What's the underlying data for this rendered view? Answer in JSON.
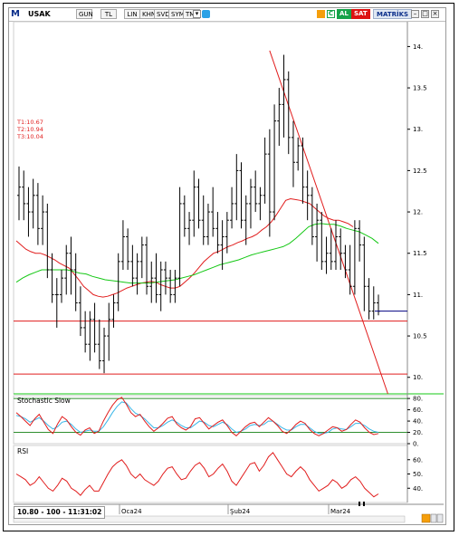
{
  "toolbar": {
    "logo": "M",
    "symbol": "USAK",
    "buttons": [
      "GUN",
      "TL",
      "LIN",
      "KHN",
      "SVD",
      "SYM",
      "TMP"
    ],
    "al_label": "AL",
    "sat_label": "SAT",
    "brand_label": "MATRİKS",
    "c_label": "C"
  },
  "status": "10.80 - 100 - 11:31:02",
  "targets": [
    "T1:10.67",
    "T2:10.94",
    "T3:10.04"
  ],
  "colors": {
    "bars": "#000000",
    "ma_fast": "#e11d1d",
    "ma_slow": "#16c816",
    "trendline": "#e11d1d",
    "hline": "#e11d1d",
    "stoch_k": "#e11d1d",
    "stoch_d": "#38b6e8",
    "rsi": "#e11d1d",
    "last_price_line": "#000080"
  },
  "chart_data": [
    {
      "type": "ohlc",
      "ylim": [
        9.8,
        14.3
      ],
      "y_ticks": [
        "14.",
        "13.5",
        "13.",
        "12.5",
        "12.",
        "11.5",
        "11.",
        "10.5",
        "10."
      ],
      "x_ticks": [
        "Oca24",
        "Şub24",
        "Mar24"
      ],
      "bars": [
        [
          12.2,
          12.55,
          11.9,
          12.3
        ],
        [
          12.3,
          12.5,
          11.9,
          12.1
        ],
        [
          12.1,
          12.3,
          11.7,
          12.0
        ],
        [
          12.0,
          12.4,
          11.8,
          12.2
        ],
        [
          12.2,
          12.35,
          11.6,
          11.8
        ],
        [
          11.8,
          12.2,
          11.6,
          12.0
        ],
        [
          12.0,
          12.1,
          11.2,
          11.3
        ],
        [
          11.3,
          11.5,
          10.9,
          11.0
        ],
        [
          11.0,
          11.2,
          10.6,
          11.0
        ],
        [
          11.0,
          11.3,
          10.9,
          11.2
        ],
        [
          11.2,
          11.6,
          11.0,
          11.5
        ],
        [
          11.5,
          11.7,
          11.0,
          11.3
        ],
        [
          11.3,
          11.5,
          10.8,
          10.9
        ],
        [
          10.9,
          11.1,
          10.5,
          10.6
        ],
        [
          10.6,
          10.8,
          10.3,
          10.4
        ],
        [
          10.4,
          10.8,
          10.2,
          10.7
        ],
        [
          10.7,
          10.9,
          10.3,
          10.4
        ],
        [
          10.4,
          10.7,
          10.1,
          10.2
        ],
        [
          10.2,
          10.6,
          10.05,
          10.5
        ],
        [
          10.5,
          10.9,
          10.2,
          10.7
        ],
        [
          10.7,
          11.0,
          10.6,
          10.9
        ],
        [
          10.9,
          11.5,
          10.8,
          11.4
        ],
        [
          11.4,
          11.9,
          11.3,
          11.7
        ],
        [
          11.7,
          11.8,
          11.3,
          11.4
        ],
        [
          11.4,
          11.6,
          11.1,
          11.2
        ],
        [
          11.2,
          11.5,
          11.0,
          11.4
        ],
        [
          11.4,
          11.7,
          11.2,
          11.6
        ],
        [
          11.6,
          11.7,
          11.0,
          11.1
        ],
        [
          11.1,
          11.4,
          10.9,
          11.2
        ],
        [
          11.2,
          11.5,
          10.9,
          11.0
        ],
        [
          11.0,
          11.4,
          10.8,
          11.3
        ],
        [
          11.3,
          11.4,
          11.0,
          11.2
        ],
        [
          11.2,
          11.3,
          10.9,
          11.0
        ],
        [
          11.0,
          11.3,
          10.9,
          11.2
        ],
        [
          11.2,
          12.3,
          11.1,
          12.1
        ],
        [
          12.1,
          12.2,
          11.7,
          11.8
        ],
        [
          11.8,
          12.0,
          11.6,
          11.9
        ],
        [
          11.9,
          12.5,
          11.7,
          12.3
        ],
        [
          12.3,
          12.4,
          11.8,
          11.9
        ],
        [
          11.9,
          12.2,
          11.6,
          11.7
        ],
        [
          11.7,
          12.1,
          11.6,
          12.0
        ],
        [
          12.0,
          12.3,
          11.7,
          11.8
        ],
        [
          11.8,
          12.0,
          11.5,
          11.6
        ],
        [
          11.6,
          11.9,
          11.3,
          11.7
        ],
        [
          11.7,
          12.0,
          11.5,
          11.9
        ],
        [
          11.9,
          12.3,
          11.8,
          12.1
        ],
        [
          12.1,
          12.7,
          11.9,
          12.5
        ],
        [
          12.5,
          12.6,
          11.8,
          11.9
        ],
        [
          11.9,
          12.2,
          11.6,
          12.1
        ],
        [
          12.1,
          12.4,
          11.8,
          12.3
        ],
        [
          12.3,
          12.5,
          12.0,
          12.1
        ],
        [
          12.1,
          12.3,
          11.9,
          12.2
        ],
        [
          12.2,
          12.9,
          12.1,
          12.7
        ],
        [
          12.7,
          13.0,
          11.7,
          12.0
        ],
        [
          12.0,
          13.3,
          11.9,
          13.1
        ],
        [
          13.1,
          13.5,
          12.8,
          13.3
        ],
        [
          13.3,
          13.9,
          12.9,
          13.6
        ],
        [
          13.6,
          13.7,
          12.7,
          12.9
        ],
        [
          12.9,
          13.1,
          12.3,
          12.6
        ],
        [
          12.6,
          12.9,
          12.5,
          12.8
        ],
        [
          12.8,
          12.9,
          12.1,
          12.3
        ],
        [
          12.3,
          12.5,
          11.9,
          12.2
        ],
        [
          12.2,
          12.3,
          11.6,
          11.7
        ],
        [
          11.7,
          12.1,
          11.4,
          11.9
        ],
        [
          11.9,
          12.0,
          11.3,
          11.4
        ],
        [
          11.4,
          11.7,
          11.25,
          11.5
        ],
        [
          11.5,
          11.8,
          11.3,
          11.4
        ],
        [
          11.4,
          11.9,
          11.3,
          11.7
        ],
        [
          11.7,
          11.8,
          11.3,
          11.5
        ],
        [
          11.5,
          11.6,
          11.2,
          11.3
        ],
        [
          11.3,
          11.6,
          11.0,
          11.1
        ],
        [
          11.1,
          11.9,
          11.0,
          11.8
        ],
        [
          11.8,
          11.9,
          11.4,
          11.6
        ],
        [
          11.6,
          11.7,
          10.8,
          11.1
        ],
        [
          11.1,
          11.2,
          10.7,
          10.8
        ],
        [
          10.8,
          11.1,
          10.7,
          10.9
        ],
        [
          10.9,
          11.0,
          10.75,
          10.8
        ]
      ],
      "ma_fast": [
        11.65,
        11.6,
        11.55,
        11.52,
        11.5,
        11.5,
        11.48,
        11.45,
        11.42,
        11.38,
        11.35,
        11.32,
        11.25,
        11.18,
        11.1,
        11.05,
        11.0,
        10.98,
        10.97,
        10.98,
        11.0,
        11.02,
        11.05,
        11.08,
        11.1,
        11.12,
        11.14,
        11.15,
        11.16,
        11.15,
        11.12,
        11.1,
        11.08,
        11.08,
        11.1,
        11.15,
        11.2,
        11.26,
        11.33,
        11.4,
        11.45,
        11.5,
        11.52,
        11.55,
        11.58,
        11.6,
        11.63,
        11.65,
        11.68,
        11.7,
        11.73,
        11.78,
        11.82,
        11.88,
        11.96,
        12.05,
        12.14,
        12.16,
        12.15,
        12.14,
        12.12,
        12.1,
        12.05,
        12.0,
        11.95,
        11.92,
        11.9,
        11.9,
        11.88,
        11.86,
        11.82
      ],
      "ma_slow": [
        11.15,
        11.2,
        11.24,
        11.27,
        11.3,
        11.3,
        11.3,
        11.3,
        11.3,
        11.28,
        11.26,
        11.25,
        11.22,
        11.2,
        11.18,
        11.17,
        11.16,
        11.15,
        11.14,
        11.14,
        11.14,
        11.14,
        11.15,
        11.16,
        11.17,
        11.18,
        11.2,
        11.22,
        11.24,
        11.27,
        11.3,
        11.33,
        11.36,
        11.38,
        11.4,
        11.42,
        11.45,
        11.48,
        11.5,
        11.52,
        11.54,
        11.56,
        11.58,
        11.62,
        11.68,
        11.75,
        11.82,
        11.85,
        11.86,
        11.85,
        11.85,
        11.83,
        11.8,
        11.78,
        11.76,
        11.72,
        11.68,
        11.62
      ],
      "hlines": [
        10.68,
        10.04
      ],
      "last_price": 10.8,
      "trendline": {
        "from": [
          53,
          13.95
        ],
        "to": [
          78,
          9.8
        ]
      }
    },
    {
      "type": "line",
      "name": "Stochastic Slow",
      "ylim": [
        0,
        85
      ],
      "y_ticks": [
        "80.",
        "60.",
        "40.",
        "20.",
        "0."
      ],
      "levels": [
        80,
        20
      ],
      "series": [
        {
          "values": [
            55,
            48,
            40,
            32,
            44,
            52,
            38,
            25,
            18,
            35,
            48,
            42,
            30,
            20,
            15,
            24,
            28,
            18,
            22,
            40,
            55,
            68,
            78,
            82,
            70,
            55,
            48,
            52,
            40,
            30,
            22,
            28,
            36,
            45,
            48,
            35,
            28,
            24,
            30,
            44,
            46,
            36,
            26,
            32,
            38,
            42,
            32,
            20,
            14,
            22,
            30,
            36,
            38,
            30,
            38,
            46,
            40,
            32,
            22,
            18,
            25,
            34,
            40,
            36,
            25,
            18,
            14,
            18,
            24,
            30,
            28,
            22,
            25,
            34,
            42,
            38,
            28,
            20,
            16,
            18
          ]
        },
        {
          "values": [
            50,
            48,
            44,
            38,
            42,
            46,
            40,
            32,
            26,
            30,
            38,
            40,
            34,
            26,
            20,
            22,
            24,
            22,
            22,
            30,
            42,
            55,
            66,
            74,
            72,
            62,
            54,
            50,
            44,
            36,
            28,
            28,
            32,
            38,
            42,
            38,
            32,
            28,
            28,
            34,
            40,
            38,
            32,
            30,
            34,
            38,
            34,
            26,
            20,
            22,
            26,
            32,
            34,
            32,
            34,
            40,
            40,
            34,
            28,
            24,
            24,
            30,
            34,
            34,
            28,
            22,
            18,
            18,
            20,
            26,
            28,
            26,
            25,
            30,
            36,
            36,
            32,
            26,
            22,
            20
          ]
        }
      ]
    },
    {
      "type": "line",
      "name": "RSI",
      "ylim": [
        30,
        70
      ],
      "y_ticks": [
        "60.",
        "50.",
        "40."
      ],
      "series": [
        {
          "values": [
            50,
            48,
            46,
            42,
            44,
            48,
            44,
            40,
            38,
            42,
            47,
            45,
            40,
            38,
            35,
            39,
            42,
            38,
            38,
            44,
            50,
            55,
            58,
            60,
            56,
            50,
            47,
            50,
            46,
            44,
            42,
            45,
            50,
            54,
            55,
            50,
            46,
            47,
            52,
            56,
            58,
            54,
            48,
            50,
            54,
            57,
            52,
            45,
            42,
            47,
            52,
            57,
            58,
            52,
            56,
            62,
            65,
            60,
            55,
            50,
            48,
            52,
            55,
            52,
            46,
            42,
            38,
            40,
            42,
            46,
            44,
            40,
            42,
            46,
            48,
            45,
            40,
            37,
            34,
            36
          ]
        }
      ]
    }
  ]
}
